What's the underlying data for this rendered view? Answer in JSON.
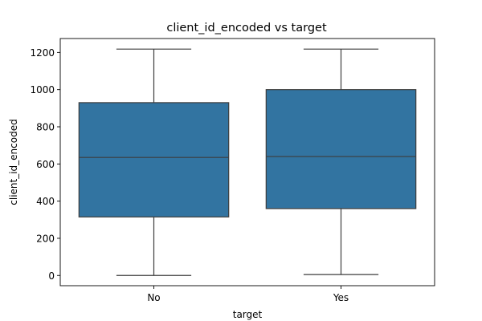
{
  "chart_data": {
    "type": "box",
    "title": "client_id_encoded vs target",
    "xlabel": "target",
    "ylabel": "client_id_encoded",
    "categories": [
      "No",
      "Yes"
    ],
    "boxes": [
      {
        "category": "No",
        "min": 0,
        "q1": 315,
        "median": 635,
        "q3": 930,
        "max": 1218
      },
      {
        "category": "Yes",
        "min": 5,
        "q1": 360,
        "median": 640,
        "q3": 1000,
        "max": 1218
      }
    ],
    "yticks": [
      0,
      200,
      400,
      600,
      800,
      1000,
      1200
    ],
    "ylim": [
      -55,
      1275
    ],
    "grid": false,
    "box_color": "#3274a1",
    "line_color": "#3d3d3d"
  }
}
